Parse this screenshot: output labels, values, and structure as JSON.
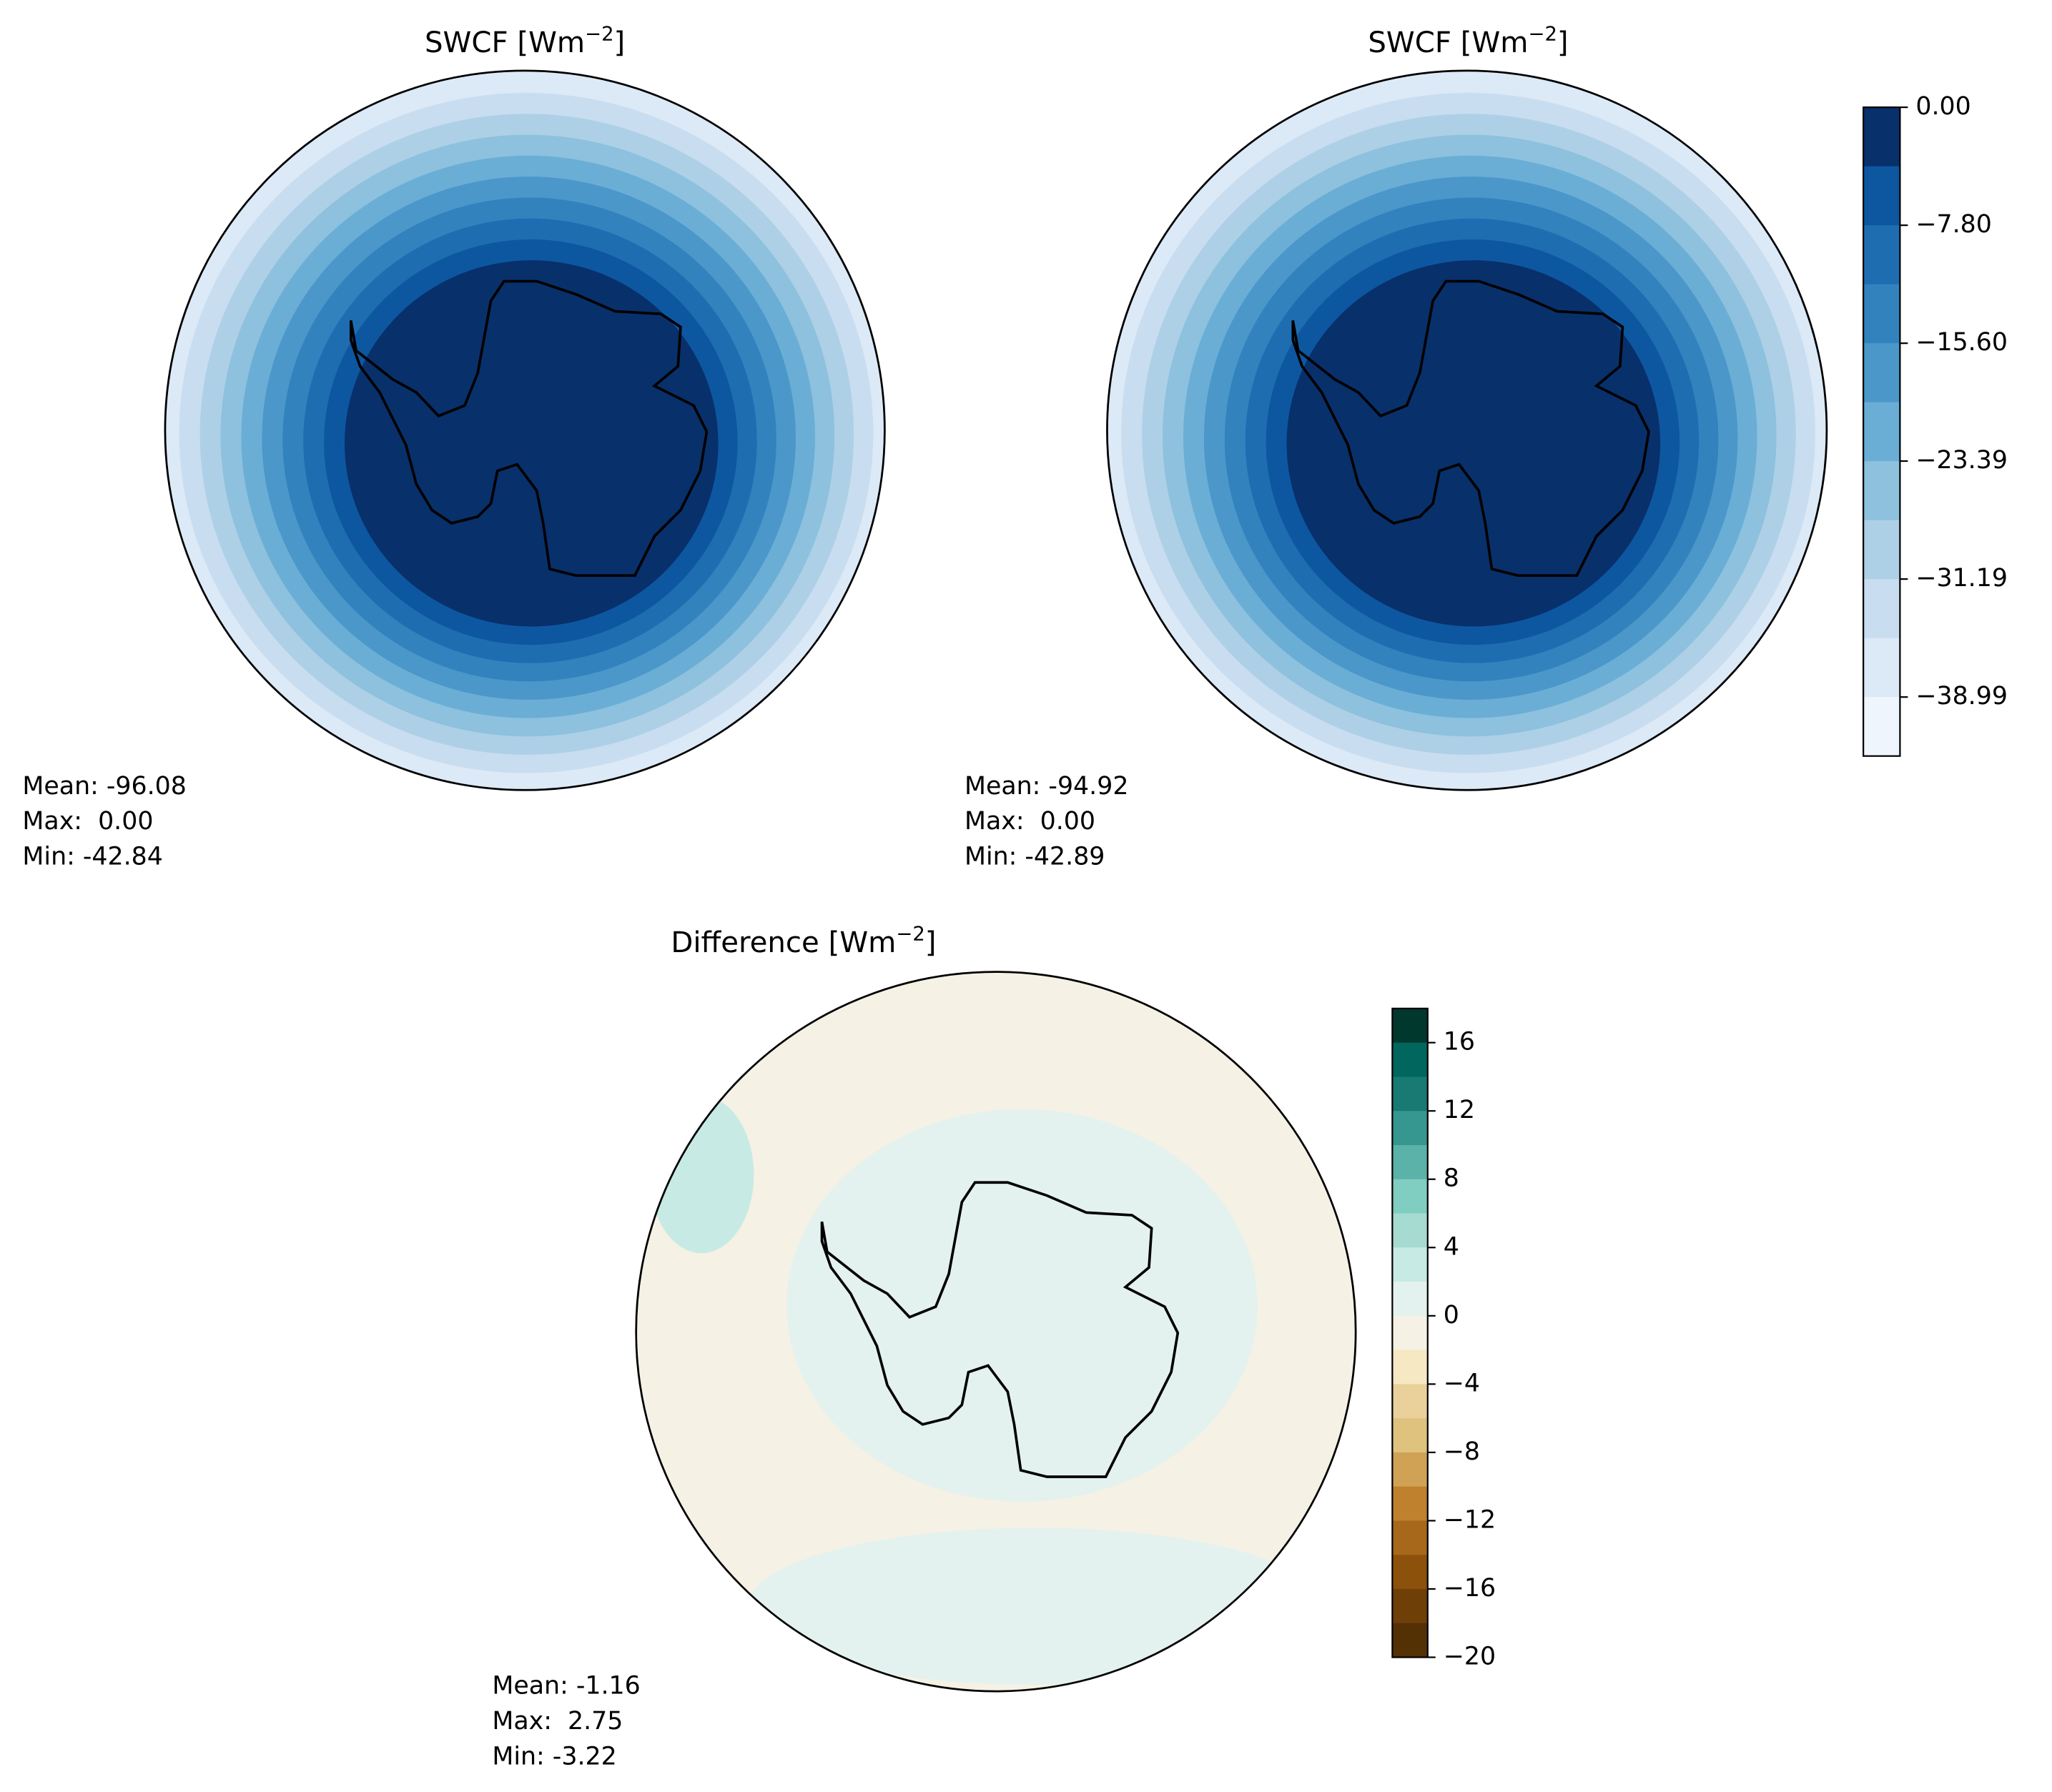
{
  "panels": [
    {
      "title": {
        "text": "SWCF [Wm",
        "sup": "−2",
        "end": "]"
      },
      "stats": [
        "Mean: -96.08",
        "Max:  0.00",
        "Min: -42.84"
      ]
    },
    {
      "title": {
        "text": "SWCF [Wm",
        "sup": "−2",
        "end": "]"
      },
      "stats": [
        "Mean: -94.92",
        "Max:  0.00",
        "Min: -42.89"
      ]
    },
    {
      "title": {
        "text": "Difference [Wm",
        "sup": "−2",
        "end": "]"
      },
      "stats": [
        "Mean: -1.16",
        "Max:  2.75",
        "Min: -3.22"
      ]
    }
  ],
  "colorbars": [
    {
      "lim": [
        -42.89,
        0
      ],
      "ticks": [
        {
          "value": 0,
          "label": "0.00"
        },
        {
          "value": -7.8,
          "label": "−7.80"
        },
        {
          "value": -15.6,
          "label": "−15.60"
        },
        {
          "value": -23.39,
          "label": "−23.39"
        },
        {
          "value": -31.19,
          "label": "−31.19"
        },
        {
          "value": -38.99,
          "label": "−38.99"
        }
      ],
      "colors": [
        "#08306b",
        "#0d57a1",
        "#1f6db1",
        "#3282be",
        "#4b97c9",
        "#6aaed6",
        "#8dc1dd",
        "#add0e6",
        "#c9ddf0",
        "#dce9f6",
        "#eff5fc"
      ]
    },
    {
      "lim": [
        -20,
        18
      ],
      "ticks": [
        16,
        12,
        8,
        4,
        0,
        {
          "value": -4,
          "label": "−4"
        },
        {
          "value": -8,
          "label": "−8"
        },
        {
          "value": -12,
          "label": "−12"
        },
        {
          "value": -16,
          "label": "−16"
        },
        {
          "value": -20,
          "label": "−20"
        }
      ],
      "colors": [
        "#01382e",
        "#01665e",
        "#187a72",
        "#35978f",
        "#5ab2a8",
        "#80cdc1",
        "#a6dbd1",
        "#c7eae5",
        "#e4f2ef",
        "#f5f1e4",
        "#f6e8c3",
        "#ead19b",
        "#dfc27d",
        "#cfa255",
        "#bf812d",
        "#a7681c",
        "#8c510a",
        "#6e3f07",
        "#543005"
      ]
    }
  ]
}
